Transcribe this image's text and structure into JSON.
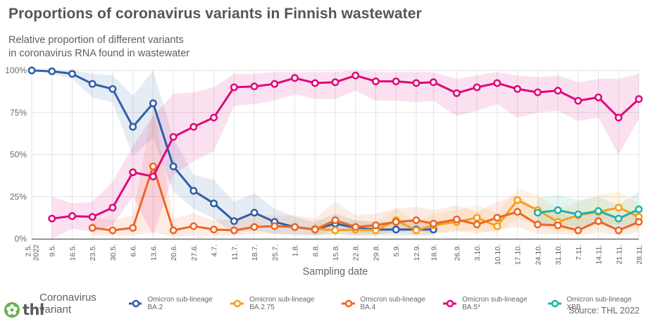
{
  "header": {
    "title": "Proportions of coronavirus variants in Finnish wastewater",
    "subtitle_line1": "Relative proportion of different variants",
    "subtitle_line2": "in coronavirus RNA found in wastewater"
  },
  "legend": {
    "title": "Coronavirus variant"
  },
  "footer": {
    "logo_text": "thl",
    "source": "Source: THL 2022"
  },
  "colors": {
    "BA2": "#2f5fa8",
    "BA275": "#f4a11c",
    "BA4": "#ec6625",
    "BA5": "#e0077a",
    "XBB": "#1fb4a6",
    "logo": "#6ab04c"
  },
  "chart_data": {
    "type": "line",
    "title": "Proportions of coronavirus variants in Finnish wastewater",
    "subtitle": "Relative proportion of different variants in coronavirus RNA found in wastewater",
    "xlabel": "Sampling date",
    "ylabel": "",
    "ylim": [
      0,
      100
    ],
    "yticks": [
      "0%",
      "25%",
      "50%",
      "75%",
      "100%"
    ],
    "grid": true,
    "legend_position": "bottom",
    "x": [
      "2.5. 2022",
      "9.5.",
      "16.5.",
      "23.5.",
      "30.5.",
      "6.6.",
      "13.6.",
      "20.6.",
      "27.6.",
      "4.7.",
      "11.7.",
      "18.7.",
      "25.7.",
      "1.8.",
      "8.8.",
      "15.8.",
      "22.8.",
      "29.8.",
      "5.9.",
      "12.9.",
      "18.9.",
      "26.9.",
      "3.10.",
      "10.10.",
      "17.10.",
      "24.10.",
      "31.10.",
      "7.11.",
      "14.11.",
      "21.11.",
      "28.11."
    ],
    "series": [
      {
        "name": "Omicron sub-lineage BA.2",
        "key": "BA2",
        "values": [
          100,
          99.5,
          98,
          92,
          89,
          66.5,
          80.5,
          43,
          28.5,
          21,
          10.5,
          15.5,
          10,
          7,
          5.5,
          9,
          6.5,
          5.5,
          5.5,
          5.5,
          5.5,
          null,
          null,
          null,
          null,
          null,
          null,
          null,
          null,
          null,
          null
        ],
        "lower": [
          100,
          98,
          95,
          84,
          81,
          49,
          60,
          28,
          18,
          12,
          3,
          5,
          3,
          2,
          2,
          3,
          2,
          2,
          2,
          2,
          2,
          null,
          null,
          null,
          null,
          null,
          null,
          null,
          null,
          null,
          null
        ],
        "upper": [
          100,
          100,
          100,
          98,
          97,
          85,
          100,
          60,
          38,
          35,
          22,
          27,
          18,
          13,
          10,
          15,
          11,
          10,
          10,
          10,
          10,
          null,
          null,
          null,
          null,
          null,
          null,
          null,
          null,
          null,
          null
        ]
      },
      {
        "name": "Omicron sub-lineage BA.2.75",
        "key": "BA275",
        "values": [
          null,
          null,
          null,
          null,
          null,
          null,
          null,
          null,
          null,
          null,
          null,
          null,
          null,
          null,
          6,
          5,
          5.5,
          5,
          11,
          5,
          8,
          10,
          12.5,
          7.5,
          23,
          17,
          10,
          14,
          16,
          18.5,
          13
        ],
        "lower": [
          null,
          null,
          null,
          null,
          null,
          null,
          null,
          null,
          null,
          null,
          null,
          null,
          null,
          null,
          2,
          2,
          2,
          2,
          4,
          2,
          3,
          4,
          5,
          3,
          12,
          8,
          4,
          6,
          8,
          9,
          6
        ],
        "upper": [
          null,
          null,
          null,
          null,
          null,
          null,
          null,
          null,
          null,
          null,
          null,
          null,
          null,
          null,
          12,
          10,
          11,
          10,
          18,
          10,
          15,
          17,
          20,
          15,
          30,
          26,
          18,
          22,
          26,
          28,
          21
        ]
      },
      {
        "name": "Omicron sub-lineage BA.4",
        "key": "BA4",
        "values": [
          null,
          null,
          null,
          6.5,
          5,
          6.5,
          43,
          5,
          7.5,
          5.5,
          5,
          7,
          7.5,
          7,
          5.5,
          11,
          7,
          8,
          10,
          11,
          9,
          11.5,
          8.5,
          12.5,
          16,
          8.5,
          8,
          5,
          10.5,
          5,
          10
        ],
        "lower": [
          null,
          null,
          null,
          2,
          2,
          2,
          4,
          1,
          2,
          2,
          2,
          3,
          3,
          3,
          2,
          5,
          3,
          3,
          4,
          5,
          3,
          5,
          3,
          5,
          7,
          3,
          3,
          2,
          4,
          2,
          4
        ],
        "upper": [
          null,
          null,
          null,
          13,
          11,
          14,
          78,
          12,
          15,
          11,
          12,
          14,
          14,
          14,
          12,
          22,
          14,
          15,
          18,
          19,
          17,
          20,
          16,
          22,
          26,
          17,
          16,
          12,
          19,
          11,
          18
        ]
      },
      {
        "name": "Omicron sub-lineage BA.5*",
        "key": "BA5",
        "values": [
          null,
          12,
          13.5,
          13,
          18.5,
          39.5,
          37,
          60.5,
          66.5,
          72,
          90,
          90.5,
          92,
          95.5,
          92.5,
          93,
          97,
          93.5,
          93.5,
          92.5,
          93,
          86.5,
          90,
          92.5,
          89,
          87,
          88,
          82,
          84,
          72,
          83
        ],
        "lower": [
          null,
          0,
          6,
          4,
          8,
          25,
          2,
          38,
          46,
          52,
          79,
          80,
          82,
          86,
          83,
          83,
          88,
          82,
          82,
          81,
          82,
          73,
          76,
          80,
          72,
          75,
          76,
          70,
          72,
          50,
          71
        ],
        "upper": [
          null,
          25,
          21,
          22,
          34,
          55,
          73,
          86,
          87,
          90,
          98,
          98,
          99,
          99,
          99,
          99,
          100,
          99,
          99,
          99,
          99,
          95,
          97,
          99,
          97,
          96,
          97,
          93,
          95,
          95,
          98
        ]
      },
      {
        "name": "Omicron sub-lineage XBB",
        "key": "XBB",
        "values": [
          null,
          null,
          null,
          null,
          null,
          null,
          null,
          null,
          null,
          null,
          null,
          null,
          null,
          null,
          null,
          null,
          null,
          null,
          null,
          null,
          null,
          null,
          null,
          null,
          null,
          15.5,
          17,
          14.5,
          16.5,
          12,
          17.5
        ],
        "lower": [
          null,
          null,
          null,
          null,
          null,
          null,
          null,
          null,
          null,
          null,
          null,
          null,
          null,
          null,
          null,
          null,
          null,
          null,
          null,
          null,
          null,
          null,
          null,
          null,
          null,
          8,
          9,
          7,
          9,
          5,
          9
        ],
        "upper": [
          null,
          null,
          null,
          null,
          null,
          null,
          null,
          null,
          null,
          null,
          null,
          null,
          null,
          null,
          null,
          null,
          null,
          null,
          null,
          null,
          null,
          null,
          null,
          null,
          null,
          24,
          26,
          23,
          25,
          20,
          28
        ]
      }
    ]
  }
}
